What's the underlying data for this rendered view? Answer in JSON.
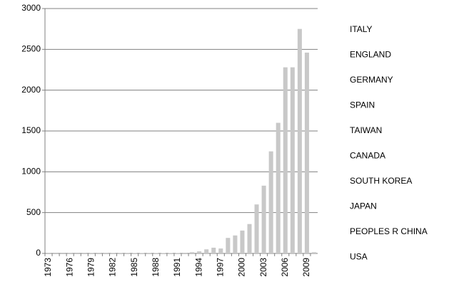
{
  "chart_data": {
    "type": "bar",
    "categories": [
      "1973",
      null,
      null,
      "1976",
      null,
      null,
      "1979",
      null,
      null,
      "1982",
      null,
      null,
      "1985",
      null,
      null,
      "1988",
      null,
      null,
      "1991",
      null,
      null,
      "1994",
      null,
      null,
      "1997",
      null,
      null,
      "2000",
      null,
      null,
      "2003",
      null,
      null,
      "2006",
      null,
      null,
      "2009",
      null
    ],
    "values": [
      2,
      1,
      1,
      2,
      1,
      2,
      3,
      2,
      2,
      3,
      3,
      3,
      4,
      4,
      3,
      4,
      4,
      4,
      5,
      8,
      15,
      25,
      50,
      70,
      60,
      190,
      220,
      280,
      360,
      600,
      830,
      1250,
      1600,
      2280,
      2280,
      2750,
      2460,
      15
    ],
    "color": "#c8c8c8",
    "legend": [
      "ITALY",
      "ENGLAND",
      "GERMANY",
      "SPAIN",
      "TAIWAN",
      "CANADA",
      "SOUTH KOREA",
      "JAPAN",
      "PEOPLES R CHINA",
      "USA"
    ],
    "ylim": [
      0,
      3000
    ],
    "yticks": [
      0,
      500,
      1000,
      1500,
      2000,
      2500,
      3000
    ],
    "grid": true
  }
}
